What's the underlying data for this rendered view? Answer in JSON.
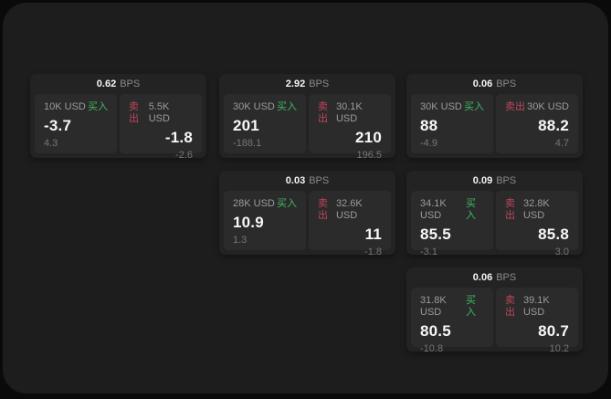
{
  "labels": {
    "bps_unit": "BPS",
    "buy": "买入",
    "sell": "卖出"
  },
  "colors": {
    "buy_green": "#41b95f",
    "sell_red": "#bf4659",
    "page_bg": "#1d1d1e",
    "card_bg": "#232324",
    "panel_bg": "#2b2b2c"
  },
  "cards": [
    {
      "bps": "0.62",
      "buy": {
        "size": "10K USD",
        "price": "-3.7",
        "delta": "4.3"
      },
      "sell": {
        "size": "5.5K USD",
        "price": "-1.8",
        "delta": "-2.6"
      }
    },
    {
      "bps": "2.92",
      "buy": {
        "size": "30K USD",
        "price": "201",
        "delta": "-188.1"
      },
      "sell": {
        "size": "30.1K USD",
        "price": "210",
        "delta": "196.5"
      }
    },
    {
      "bps": "0.06",
      "buy": {
        "size": "30K USD",
        "price": "88",
        "delta": "-4.9"
      },
      "sell": {
        "size": "30K USD",
        "price": "88.2",
        "delta": "4.7"
      }
    },
    {
      "bps": "0.03",
      "buy": {
        "size": "28K USD",
        "price": "10.9",
        "delta": "1.3"
      },
      "sell": {
        "size": "32.6K USD",
        "price": "11",
        "delta": "-1.8"
      }
    },
    {
      "bps": "0.09",
      "buy": {
        "size": "34.1K USD",
        "price": "85.5",
        "delta": "-3.1"
      },
      "sell": {
        "size": "32.8K USD",
        "price": "85.8",
        "delta": "3.0"
      }
    },
    {
      "bps": "0.06",
      "buy": {
        "size": "31.8K USD",
        "price": "80.5",
        "delta": "-10.8"
      },
      "sell": {
        "size": "39.1K USD",
        "price": "80.7",
        "delta": "10.2"
      }
    }
  ]
}
